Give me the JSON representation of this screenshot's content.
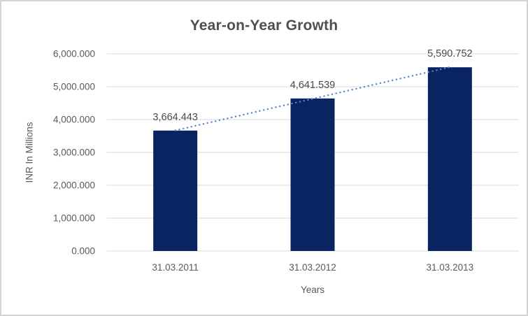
{
  "chart_data": {
    "type": "bar",
    "title": "Year-on-Year Growth",
    "xlabel": "Years",
    "ylabel": "INR In Millions",
    "categories": [
      "31.03.2011",
      "31.03.2012",
      "31.03.2013"
    ],
    "values": [
      3664.443,
      4641.539,
      5590.752
    ],
    "data_labels": [
      "3,664.443",
      "4,641.539",
      "5,590.752"
    ],
    "ylim": [
      0,
      6000
    ],
    "y_tick_values": [
      0,
      1000,
      2000,
      3000,
      4000,
      5000,
      6000
    ],
    "y_tick_labels": [
      "0.000",
      "1,000.000",
      "2,000.000",
      "3,000.000",
      "4,000.000",
      "5,000.000",
      "6,000.000"
    ],
    "grid": true,
    "legend": "none",
    "trendline": {
      "type": "linear",
      "style": "dotted"
    },
    "colors": {
      "bar": "#0a2462",
      "trendline": "#5588cc",
      "gridline": "#d9d9d9",
      "tick_label": "#595959",
      "data_label": "#4a4a4a",
      "title": "#4f4f4f",
      "frame_border": "#d4d4d4"
    }
  }
}
